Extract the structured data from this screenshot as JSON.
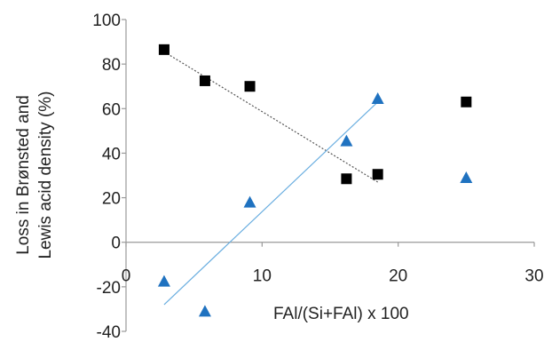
{
  "chart_data": {
    "type": "scatter",
    "xlabel": "FAl/(Si+FAl) x 100",
    "ylabel_lines": [
      "Loss in Brønsted and",
      "Lewis acid density (%)"
    ],
    "xlim": [
      0,
      30
    ],
    "ylim": [
      -40,
      100
    ],
    "x_ticks": [
      0,
      10,
      20,
      30
    ],
    "y_ticks": [
      -40,
      -20,
      0,
      20,
      40,
      60,
      80,
      100
    ],
    "x_tick_labels": [
      "0",
      "10",
      "20",
      "30"
    ],
    "y_tick_labels": [
      "-40",
      "-20",
      "0",
      "20",
      "40",
      "60",
      "80",
      "100"
    ],
    "grid": false,
    "legend": "none",
    "series": [
      {
        "marker": "square",
        "color": "#000000",
        "points": [
          {
            "x": 2.8,
            "y": 86.5
          },
          {
            "x": 5.8,
            "y": 72.5
          },
          {
            "x": 9.1,
            "y": 70.0
          },
          {
            "x": 16.2,
            "y": 28.5
          },
          {
            "x": 18.5,
            "y": 30.5
          },
          {
            "x": 25.0,
            "y": 63.0
          }
        ],
        "trendline": {
          "style": "dotted",
          "color": "#555555",
          "from": {
            "x": 2.8,
            "y": 85.5
          },
          "to": {
            "x": 18.5,
            "y": 27.0
          }
        }
      },
      {
        "marker": "triangle",
        "color": "#1f72c0",
        "points": [
          {
            "x": 2.8,
            "y": -17.5
          },
          {
            "x": 5.8,
            "y": -31.0
          },
          {
            "x": 9.1,
            "y": 18.0
          },
          {
            "x": 16.2,
            "y": 45.5
          },
          {
            "x": 18.5,
            "y": 64.5
          },
          {
            "x": 25.0,
            "y": 29.0
          }
        ],
        "trendline": {
          "style": "solid",
          "color": "#6aaee0",
          "from": {
            "x": 2.8,
            "y": -28.0
          },
          "to": {
            "x": 18.5,
            "y": 63.0
          }
        }
      }
    ]
  }
}
